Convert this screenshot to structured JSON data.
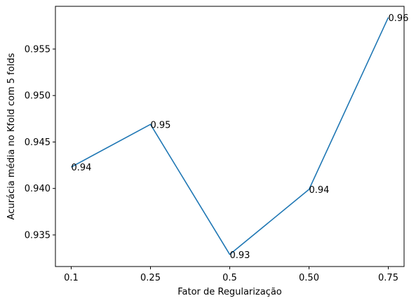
{
  "chart_data": {
    "type": "line",
    "title": "",
    "xlabel": "Fator de Regularização",
    "ylabel": "Acurácia média no Kfold com 5 folds",
    "categories": [
      "0.1",
      "0.25",
      "0.5",
      "0.50",
      "0.75"
    ],
    "series": [
      {
        "values": [
          0.9423,
          0.9469,
          0.9329,
          0.9399,
          0.9584
        ],
        "point_labels": [
          "0.94",
          "0.95",
          "0.93",
          "0.94",
          "0.96"
        ],
        "color": "#1f77b4"
      }
    ],
    "yticks": [
      "0.935",
      "0.940",
      "0.945",
      "0.950",
      "0.955"
    ],
    "ylim": [
      0.9316,
      0.9596
    ],
    "grid": false,
    "legend": "none"
  }
}
